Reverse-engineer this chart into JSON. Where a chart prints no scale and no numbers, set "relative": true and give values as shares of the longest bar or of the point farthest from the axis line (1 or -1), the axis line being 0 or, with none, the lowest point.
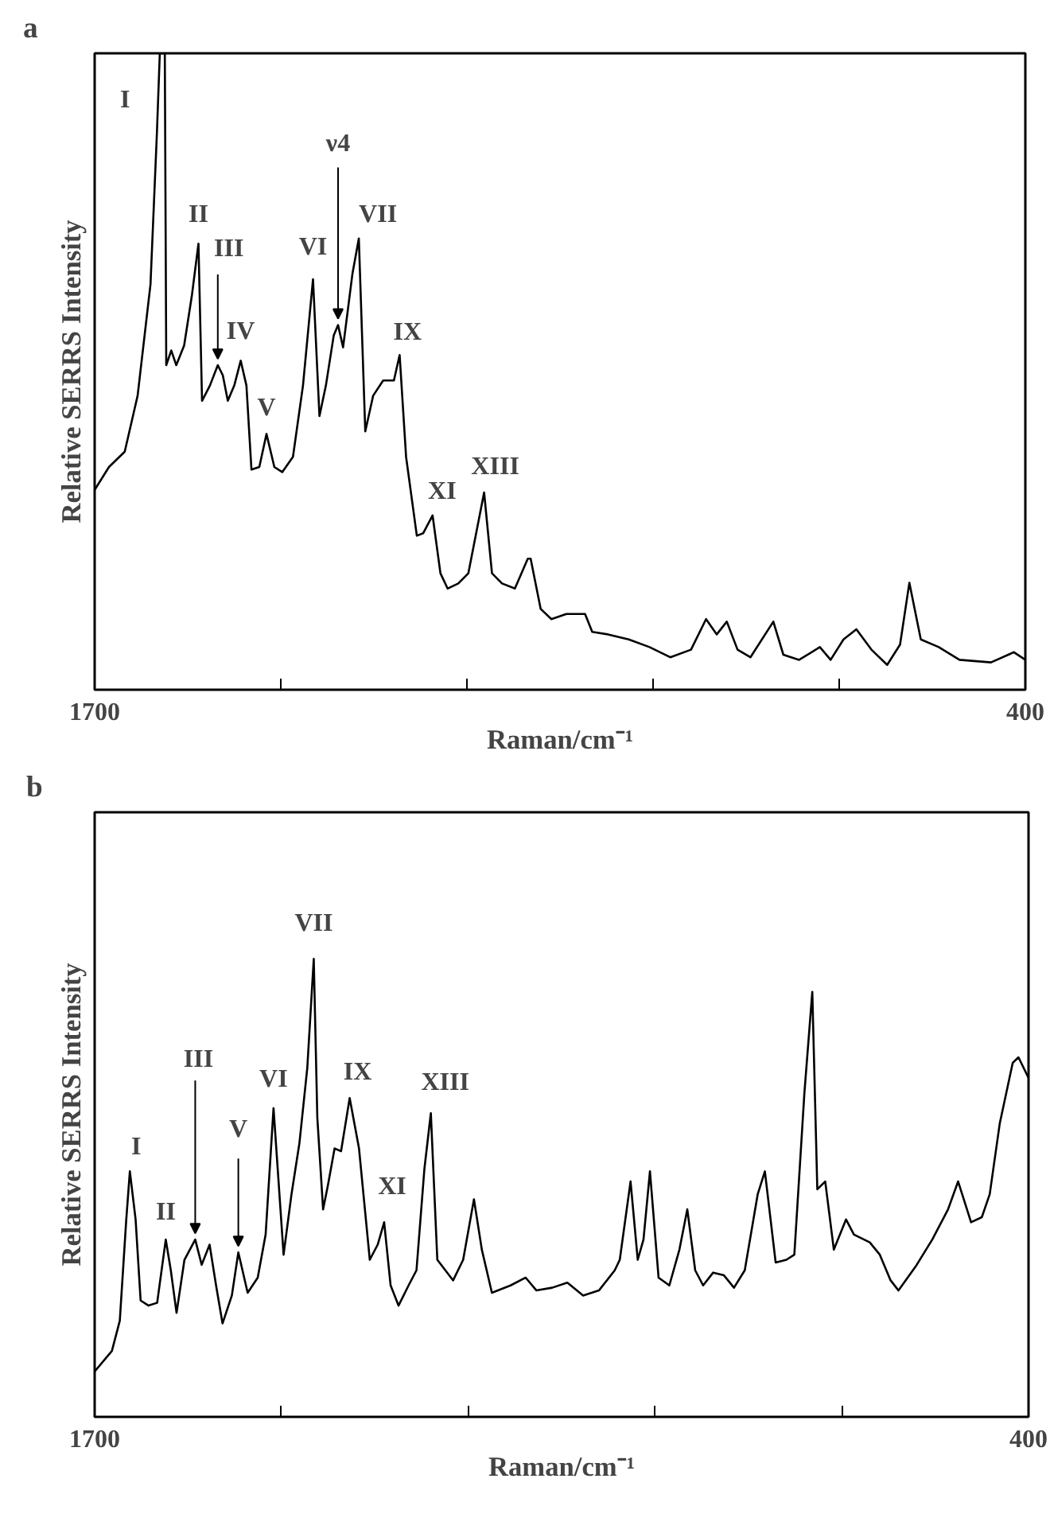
{
  "chart_data": [
    {
      "type": "line",
      "title": "a",
      "xlabel": "Raman/cm⁻¹",
      "ylabel": "Relative SERRS Intensity",
      "relative": true,
      "tick_labels": "x",
      "xlim": [
        1700,
        400
      ],
      "xticks": [
        1700,
        {
          "value": 1440,
          "label": null
        },
        {
          "value": 1180,
          "label": null
        },
        {
          "value": 920,
          "label": null
        },
        {
          "value": 660,
          "label": null
        },
        400
      ],
      "series": [
        {
          "color": "#000000",
          "x": [
            1700,
            1680,
            1658,
            1640,
            1622,
            1613,
            1609,
            1602,
            1600,
            1593,
            1586,
            1575,
            1564,
            1555,
            1550,
            1539,
            1528,
            1521,
            1514,
            1505,
            1496,
            1488,
            1481,
            1470,
            1460,
            1449,
            1438,
            1423,
            1409,
            1395,
            1386,
            1377,
            1366,
            1360,
            1353,
            1340,
            1331,
            1322,
            1311,
            1297,
            1282,
            1274,
            1265,
            1250,
            1241,
            1228,
            1217,
            1207,
            1192,
            1178,
            1156,
            1145,
            1131,
            1113,
            1095,
            1091,
            1077,
            1062,
            1041,
            1015,
            1005,
            983,
            954,
            925,
            896,
            867,
            846,
            831,
            817,
            802,
            784,
            752,
            738,
            716,
            687,
            672,
            654,
            636,
            615,
            593,
            575,
            562,
            546,
            521,
            492,
            448,
            416,
            400
          ],
          "values": [
            0.314,
            0.35,
            0.374,
            0.462,
            0.637,
            0.876,
            1.0,
            1.0,
            0.51,
            0.533,
            0.51,
            0.541,
            0.621,
            0.701,
            0.454,
            0.478,
            0.51,
            0.494,
            0.454,
            0.478,
            0.517,
            0.478,
            0.346,
            0.35,
            0.402,
            0.35,
            0.342,
            0.366,
            0.478,
            0.645,
            0.43,
            0.478,
            0.557,
            0.573,
            0.538,
            0.653,
            0.709,
            0.406,
            0.462,
            0.486,
            0.486,
            0.526,
            0.366,
            0.242,
            0.246,
            0.274,
            0.183,
            0.159,
            0.167,
            0.183,
            0.31,
            0.183,
            0.167,
            0.159,
            0.206,
            0.206,
            0.127,
            0.111,
            0.119,
            0.119,
            0.091,
            0.087,
            0.079,
            0.067,
            0.051,
            0.063,
            0.111,
            0.087,
            0.107,
            0.063,
            0.051,
            0.107,
            0.055,
            0.047,
            0.067,
            0.047,
            0.079,
            0.095,
            0.063,
            0.039,
            0.071,
            0.168,
            0.079,
            0.067,
            0.047,
            0.043,
            0.059,
            0.047
          ]
        }
      ],
      "annotations": [
        {
          "text": "I",
          "x": 1613,
          "y": 0.876
        },
        {
          "text": "II",
          "x": 1555,
          "y": 0.701
        },
        {
          "text": "III",
          "x": 1528,
          "y": 0.51
        },
        {
          "text": "IV",
          "x": 1496,
          "y": 0.517
        },
        {
          "text": "V",
          "x": 1460,
          "y": 0.402
        },
        {
          "text": "VI",
          "x": 1395,
          "y": 0.645
        },
        {
          "text": "ν4",
          "x": 1360,
          "y": 0.573
        },
        {
          "text": "VII",
          "x": 1331,
          "y": 0.709
        },
        {
          "text": "IX",
          "x": 1274,
          "y": 0.526
        },
        {
          "text": "XI",
          "x": 1228,
          "y": 0.274
        },
        {
          "text": "XIII",
          "x": 1156,
          "y": 0.31
        }
      ]
    },
    {
      "type": "line",
      "title": "b",
      "xlabel": "Raman/cm⁻¹",
      "ylabel": "Relative SERRS Intensity",
      "relative": true,
      "tick_labels": "x",
      "xlim": [
        1700,
        400
      ],
      "xticks": [
        1700,
        {
          "value": 1440,
          "label": null
        },
        {
          "value": 1180,
          "label": null
        },
        {
          "value": 920,
          "label": null
        },
        {
          "value": 660,
          "label": null
        },
        400
      ],
      "series": [
        {
          "color": "#000000",
          "x": [
            1700,
            1676,
            1665,
            1656,
            1651,
            1643,
            1636,
            1625,
            1613,
            1601,
            1594,
            1586,
            1575,
            1560,
            1551,
            1540,
            1531,
            1522,
            1509,
            1500,
            1487,
            1473,
            1462,
            1451,
            1437,
            1426,
            1415,
            1404,
            1395,
            1390,
            1382,
            1375,
            1366,
            1357,
            1345,
            1332,
            1317,
            1306,
            1297,
            1288,
            1277,
            1263,
            1252,
            1241,
            1232,
            1223,
            1201,
            1187,
            1172,
            1161,
            1147,
            1121,
            1100,
            1085,
            1063,
            1042,
            1020,
            998,
            976,
            969,
            954,
            944,
            936,
            927,
            915,
            900,
            886,
            875,
            864,
            853,
            839,
            824,
            810,
            795,
            777,
            767,
            752,
            737,
            726,
            712,
            701,
            694,
            683,
            671,
            654,
            643,
            621,
            607,
            592,
            581,
            556,
            534,
            512,
            498,
            480,
            465,
            454,
            440,
            422,
            414,
            400
          ],
          "values": [
            0.099,
            0.144,
            0.21,
            0.431,
            0.536,
            0.431,
            0.254,
            0.243,
            0.249,
            0.387,
            0.32,
            0.227,
            0.343,
            0.387,
            0.332,
            0.376,
            0.287,
            0.204,
            0.265,
            0.359,
            0.271,
            0.304,
            0.398,
            0.674,
            0.354,
            0.486,
            0.597,
            0.762,
            1.0,
            0.652,
            0.453,
            0.508,
            0.586,
            0.58,
            0.696,
            0.586,
            0.343,
            0.376,
            0.425,
            0.287,
            0.243,
            0.287,
            0.32,
            0.541,
            0.663,
            0.343,
            0.298,
            0.343,
            0.475,
            0.365,
            0.271,
            0.287,
            0.304,
            0.276,
            0.282,
            0.293,
            0.265,
            0.276,
            0.32,
            0.343,
            0.514,
            0.343,
            0.387,
            0.536,
            0.304,
            0.287,
            0.365,
            0.453,
            0.32,
            0.287,
            0.315,
            0.309,
            0.282,
            0.32,
            0.486,
            0.536,
            0.337,
            0.343,
            0.354,
            0.707,
            0.928,
            0.497,
            0.514,
            0.365,
            0.431,
            0.398,
            0.381,
            0.354,
            0.298,
            0.276,
            0.331,
            0.387,
            0.453,
            0.514,
            0.425,
            0.436,
            0.486,
            0.641,
            0.773,
            0.785,
            0.74
          ]
        }
      ],
      "annotations": [
        {
          "text": "I",
          "x": 1651,
          "y": 0.536
        },
        {
          "text": "II",
          "x": 1601,
          "y": 0.387
        },
        {
          "text": "III",
          "x": 1560,
          "y": 0.387
        },
        {
          "text": "V",
          "x": 1500,
          "y": 0.359
        },
        {
          "text": "VI",
          "x": 1451,
          "y": 0.674
        },
        {
          "text": "VII",
          "x": 1395,
          "y": 1.0
        },
        {
          "text": "IX",
          "x": 1345,
          "y": 0.696
        },
        {
          "text": "XI",
          "x": 1297,
          "y": 0.425
        },
        {
          "text": "XIII",
          "x": 1232,
          "y": 0.663
        }
      ]
    }
  ]
}
